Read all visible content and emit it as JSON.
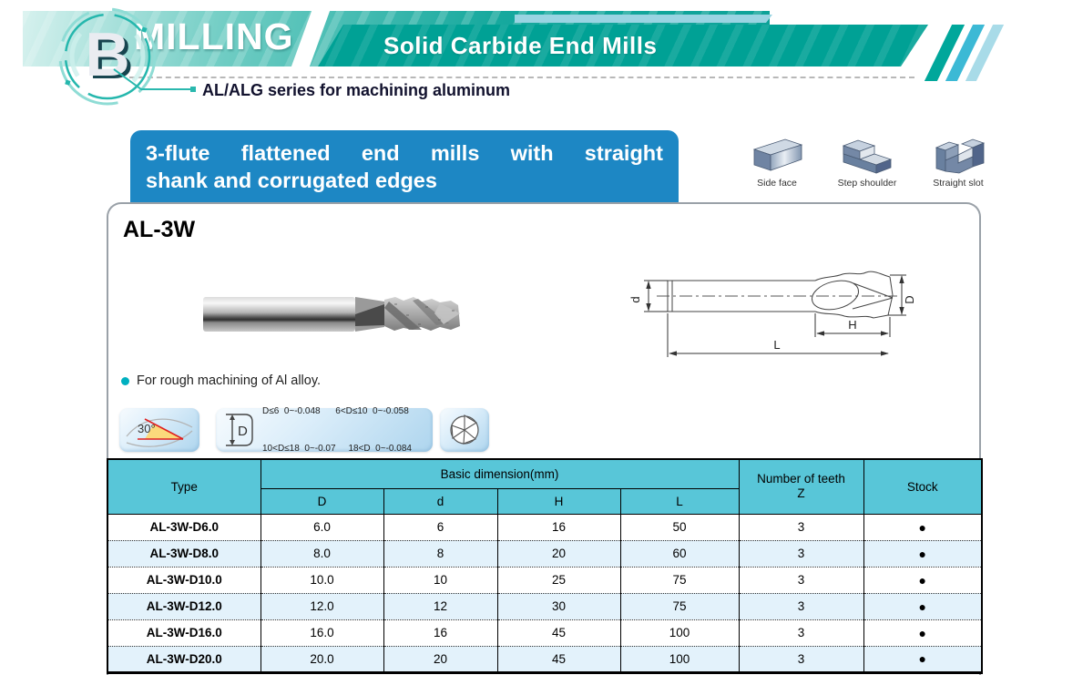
{
  "header": {
    "logo_letter": "B",
    "title": "MILLING",
    "subtitle": "Solid Carbide End Mills",
    "series_note": "AL/ALG series for machining aluminum"
  },
  "banner": {
    "line1": "3-flute flattened end mills with straight",
    "line2": "shank and corrugated edges"
  },
  "applications": [
    {
      "label": "Side face"
    },
    {
      "label": "Step shoulder"
    },
    {
      "label": "Straight slot"
    }
  ],
  "product": {
    "model": "AL-3W",
    "feature": "For rough machining of Al alloy.",
    "helix_angle": "30°",
    "tolerance_dim": "D",
    "tolerance_line1": "D≤6  0~-0.048      6<D≤10  0~-0.058",
    "tolerance_line2": "10<D≤18  0~-0.07     18<D  0~-0.084",
    "drawing": {
      "d": "d",
      "D": "D",
      "H": "H",
      "L": "L"
    }
  },
  "table": {
    "col_type": "Type",
    "col_basic": "Basic dimension(mm)",
    "sub_cols": [
      "D",
      "d",
      "H",
      "L"
    ],
    "col_teeth_1": "Number of teeth",
    "col_teeth_2": "Z",
    "col_stock": "Stock",
    "row_keys": [
      "type",
      "D",
      "d",
      "H",
      "L",
      "z",
      "stock"
    ],
    "rows": [
      {
        "type": "AL-3W-D6.0",
        "D": "6.0",
        "d": "6",
        "H": "16",
        "L": "50",
        "z": "3",
        "stock": "●"
      },
      {
        "type": "AL-3W-D8.0",
        "D": "8.0",
        "d": "8",
        "H": "20",
        "L": "60",
        "z": "3",
        "stock": "●"
      },
      {
        "type": "AL-3W-D10.0",
        "D": "10.0",
        "d": "10",
        "H": "25",
        "L": "75",
        "z": "3",
        "stock": "●"
      },
      {
        "type": "AL-3W-D12.0",
        "D": "12.0",
        "d": "12",
        "H": "30",
        "L": "75",
        "z": "3",
        "stock": "●"
      },
      {
        "type": "AL-3W-D16.0",
        "D": "16.0",
        "d": "16",
        "H": "45",
        "L": "100",
        "z": "3",
        "stock": "●"
      },
      {
        "type": "AL-3W-D20.0",
        "D": "20.0",
        "d": "20",
        "H": "45",
        "L": "100",
        "z": "3",
        "stock": "●"
      }
    ]
  },
  "colors": {
    "teal_band": "#0da298",
    "teal_dark_band": "#00a195",
    "blue_banner": "#1d87c4",
    "table_header": "#58c6d8",
    "row_alt": "#e3f2fb",
    "accent_teal": "#2ab8ae"
  }
}
